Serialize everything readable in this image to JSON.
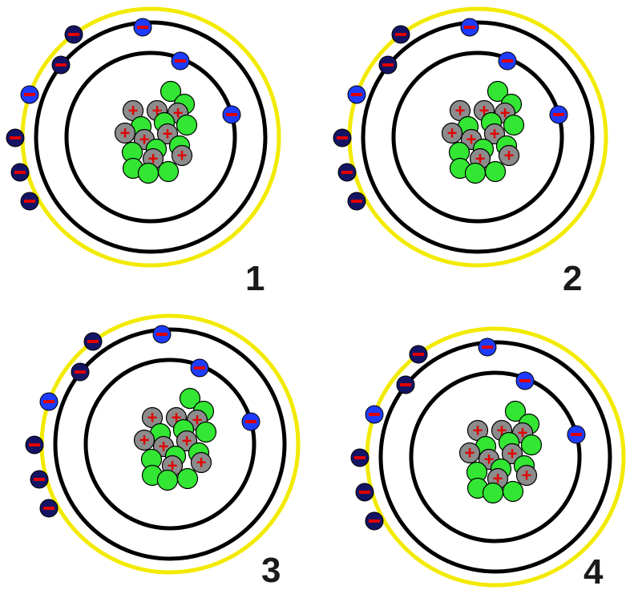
{
  "diagram": {
    "atoms": [
      {
        "label": "1"
      },
      {
        "label": "2"
      },
      {
        "label": "3"
      },
      {
        "label": "4"
      }
    ],
    "particle_signs": {
      "electron": "−",
      "proton": "+"
    },
    "colors": {
      "background": "#ffffff",
      "outer_shell": "#f2ea00",
      "inner_shells": "#000000",
      "proton": "#8c8c8c",
      "proton_sign": "#e00000",
      "neutron": "#33e633",
      "electron_blue": "#1e3cff",
      "electron_navy": "#141465",
      "electron_sign": "#e00000"
    }
  }
}
